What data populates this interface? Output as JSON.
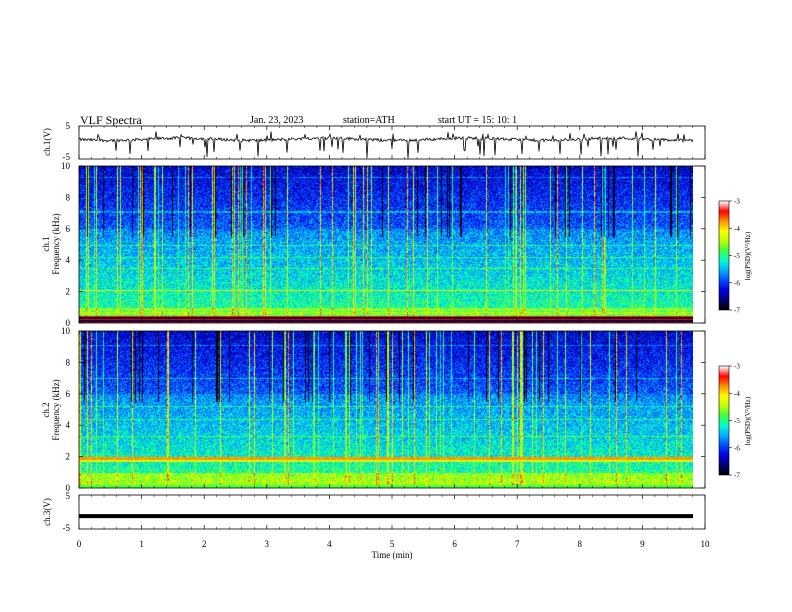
{
  "header": {
    "title": "VLF  Spectra",
    "date": "Jan. 23, 2023",
    "station": "station=ATH",
    "start": "start  UT  =   15: 10: 1"
  },
  "chart_data": [
    {
      "type": "line",
      "name": "ch1-waveform",
      "ylabel": "ch.1(V)",
      "ylim": [
        -5,
        5
      ],
      "yticks": [
        "5",
        "-5"
      ],
      "xlim": [
        0,
        10
      ],
      "description_values": "noisy waveform around +1 V with spikes"
    },
    {
      "type": "heatmap",
      "name": "ch1-spectrogram",
      "ylabel": "ch.1\nFrequency (kHz)",
      "ylabel_lines": [
        "ch.1",
        "Frequency (kHz)"
      ],
      "ylim": [
        0,
        10
      ],
      "yticks": [
        "0",
        "2",
        "4",
        "6",
        "8",
        "10"
      ],
      "xlim": [
        0,
        9.8
      ],
      "colorbar": {
        "label": "log(PSD)(V²/Hz)",
        "range": [
          -7,
          -3
        ],
        "ticks": [
          "-3",
          "-4",
          "-5",
          "-6",
          "-7"
        ]
      }
    },
    {
      "type": "heatmap",
      "name": "ch2-spectrogram",
      "ylabel": "ch.2\nFrequency (kHz)",
      "ylabel_lines": [
        "ch.2",
        "Frequency (kHz)"
      ],
      "ylim": [
        0,
        10
      ],
      "yticks": [
        "0",
        "2",
        "4",
        "6",
        "8",
        "10"
      ],
      "xlim": [
        0,
        9.8
      ],
      "colorbar": {
        "label": "log(PSD)(V²/Hz)",
        "range": [
          -7,
          -3
        ],
        "ticks": [
          "-3",
          "-4",
          "-5",
          "-6",
          "-7"
        ]
      }
    },
    {
      "type": "line",
      "name": "ch3-waveform",
      "ylabel": "ch.3(V)",
      "ylim": [
        -5,
        5
      ],
      "yticks": [
        "5",
        "-5"
      ],
      "xlim": [
        0,
        10
      ],
      "constant_value": -1.2
    }
  ],
  "xaxis": {
    "label": "Time  (min)",
    "ticks": [
      "0",
      "1",
      "2",
      "3",
      "4",
      "5",
      "6",
      "7",
      "8",
      "9",
      "10"
    ]
  },
  "colors": {
    "colormap": [
      "#000000",
      "#00007a",
      "#0000e6",
      "#0050ff",
      "#00b0ff",
      "#00ffd0",
      "#40ff40",
      "#c0ff00",
      "#ffff00",
      "#ff9000",
      "#ff0000",
      "#ffffff"
    ]
  }
}
